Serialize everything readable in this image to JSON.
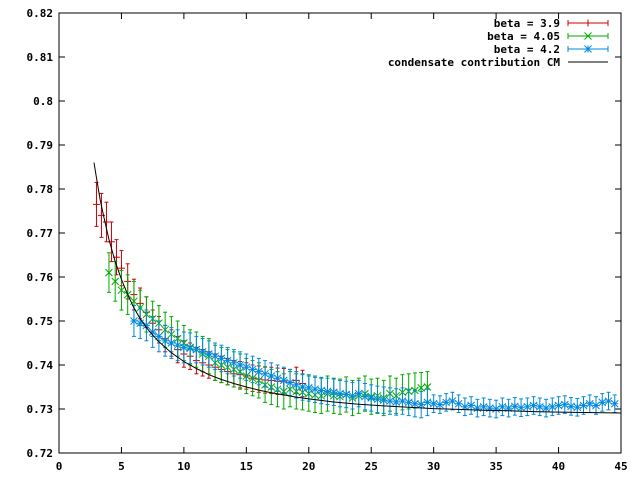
{
  "chart_data": {
    "type": "scatter",
    "title": "",
    "xlabel": "",
    "ylabel": "",
    "xlim": [
      0,
      45
    ],
    "ylim": [
      0.72,
      0.82
    ],
    "x_ticks": [
      0,
      5,
      10,
      15,
      20,
      25,
      30,
      35,
      40,
      45
    ],
    "x_tick_labels": [
      "0",
      "5",
      "10",
      "15",
      "20",
      "25",
      "30",
      "35",
      "40",
      "45"
    ],
    "y_ticks": [
      0.72,
      0.73,
      0.74,
      0.75,
      0.76,
      0.77,
      0.78,
      0.79,
      0.8,
      0.81,
      0.82
    ],
    "y_tick_labels": [
      "0.72",
      "0.73",
      "0.74",
      "0.75",
      "0.76",
      "0.77",
      "0.78",
      "0.79",
      "0.8",
      "0.81",
      "0.82"
    ],
    "grid": false,
    "legend_position": "top-right",
    "series": [
      {
        "name": "beta = 3.9",
        "color": "#cc0000",
        "marker": "plus",
        "x": [
          3.0,
          3.4,
          3.8,
          4.2,
          4.6,
          5.0,
          5.5,
          6.0,
          6.5,
          7.0,
          7.5,
          8.0,
          8.5,
          9.0,
          9.5,
          10.0,
          10.5,
          11.0,
          11.5,
          12.0,
          12.5,
          13.0,
          13.5,
          14.0,
          14.5,
          15.0,
          15.5,
          16.0,
          16.5,
          17.0,
          17.5,
          18.0,
          18.5,
          19.0,
          19.5
        ],
        "y": [
          0.7765,
          0.774,
          0.7725,
          0.768,
          0.7645,
          0.762,
          0.759,
          0.756,
          0.754,
          0.752,
          0.7495,
          0.748,
          0.746,
          0.745,
          0.7435,
          0.7425,
          0.742,
          0.741,
          0.7405,
          0.74,
          0.7395,
          0.739,
          0.7385,
          0.738,
          0.7378,
          0.7375,
          0.737,
          0.7368,
          0.7366,
          0.7365,
          0.7363,
          0.7362,
          0.736,
          0.7365,
          0.7358
        ],
        "err": [
          0.005,
          0.005,
          0.0045,
          0.0045,
          0.004,
          0.004,
          0.004,
          0.0035,
          0.0035,
          0.0035,
          0.003,
          0.003,
          0.003,
          0.003,
          0.003,
          0.003,
          0.003,
          0.003,
          0.003,
          0.003,
          0.003,
          0.003,
          0.003,
          0.003,
          0.003,
          0.003,
          0.003,
          0.003,
          0.003,
          0.003,
          0.003,
          0.003,
          0.003,
          0.003,
          0.003
        ]
      },
      {
        "name": "beta = 4.05",
        "color": "#00aa00",
        "marker": "cross",
        "x": [
          4.0,
          4.5,
          5.0,
          5.5,
          6.0,
          6.5,
          7.0,
          7.5,
          8.0,
          8.5,
          9.0,
          9.5,
          10.0,
          10.5,
          11.0,
          11.5,
          12.0,
          12.5,
          13.0,
          13.5,
          14.0,
          14.5,
          15.0,
          15.5,
          16.0,
          16.5,
          17.0,
          17.5,
          18.0,
          18.5,
          19.0,
          19.5,
          20.0,
          20.5,
          21.0,
          21.5,
          22.0,
          22.5,
          23.0,
          23.5,
          24.0,
          24.5,
          25.0,
          25.5,
          26.0,
          26.5,
          27.0,
          27.5,
          28.0,
          28.5,
          29.0,
          29.5
        ],
        "y": [
          0.761,
          0.759,
          0.757,
          0.756,
          0.7545,
          0.753,
          0.7515,
          0.7505,
          0.7495,
          0.748,
          0.747,
          0.746,
          0.745,
          0.744,
          0.7435,
          0.7425,
          0.742,
          0.7405,
          0.74,
          0.7395,
          0.739,
          0.7385,
          0.7375,
          0.737,
          0.7365,
          0.7355,
          0.735,
          0.7345,
          0.734,
          0.7345,
          0.734,
          0.7338,
          0.7335,
          0.7332,
          0.733,
          0.7335,
          0.733,
          0.7328,
          0.7333,
          0.7325,
          0.733,
          0.7335,
          0.7328,
          0.733,
          0.7325,
          0.7335,
          0.733,
          0.7338,
          0.734,
          0.7342,
          0.7348,
          0.735
        ],
        "err": [
          0.0045,
          0.0045,
          0.0045,
          0.0045,
          0.0045,
          0.004,
          0.004,
          0.004,
          0.004,
          0.004,
          0.004,
          0.004,
          0.004,
          0.004,
          0.004,
          0.004,
          0.004,
          0.004,
          0.004,
          0.004,
          0.004,
          0.004,
          0.004,
          0.004,
          0.004,
          0.004,
          0.004,
          0.004,
          0.004,
          0.004,
          0.004,
          0.004,
          0.004,
          0.004,
          0.004,
          0.004,
          0.004,
          0.004,
          0.004,
          0.004,
          0.004,
          0.004,
          0.004,
          0.004,
          0.004,
          0.004,
          0.004,
          0.004,
          0.004,
          0.004,
          0.0035,
          0.0035
        ]
      },
      {
        "name": "beta = 4.2",
        "color": "#0088dd",
        "marker": "star",
        "x": [
          6.0,
          6.5,
          7.0,
          7.5,
          8.0,
          8.5,
          9.0,
          9.5,
          10.0,
          10.5,
          11.0,
          11.5,
          12.0,
          12.5,
          13.0,
          13.5,
          14.0,
          14.5,
          15.0,
          15.5,
          16.0,
          16.5,
          17.0,
          17.5,
          18.0,
          18.5,
          19.0,
          19.5,
          20.0,
          20.5,
          21.0,
          21.5,
          22.0,
          22.5,
          23.0,
          23.5,
          24.0,
          24.5,
          25.0,
          25.5,
          26.0,
          26.5,
          27.0,
          27.5,
          28.0,
          28.5,
          29.0,
          29.5,
          30.0,
          30.5,
          31.0,
          31.5,
          32.0,
          32.5,
          33.0,
          33.5,
          34.0,
          34.5,
          35.0,
          35.5,
          36.0,
          36.5,
          37.0,
          37.5,
          38.0,
          38.5,
          39.0,
          39.5,
          40.0,
          40.5,
          41.0,
          41.5,
          42.0,
          42.5,
          43.0,
          43.5,
          44.0,
          44.5
        ],
        "y": [
          0.75,
          0.7495,
          0.749,
          0.7475,
          0.7465,
          0.7455,
          0.745,
          0.7445,
          0.744,
          0.7438,
          0.7435,
          0.743,
          0.7425,
          0.742,
          0.7415,
          0.741,
          0.7405,
          0.74,
          0.7395,
          0.739,
          0.7385,
          0.738,
          0.7375,
          0.737,
          0.7365,
          0.736,
          0.7355,
          0.735,
          0.7348,
          0.7345,
          0.7342,
          0.734,
          0.7338,
          0.7335,
          0.7333,
          0.733,
          0.7335,
          0.7328,
          0.7325,
          0.7322,
          0.732,
          0.7318,
          0.7316,
          0.7318,
          0.7315,
          0.7312,
          0.731,
          0.7315,
          0.7312,
          0.731,
          0.7315,
          0.7318,
          0.7312,
          0.7305,
          0.7308,
          0.7302,
          0.7305,
          0.7302,
          0.73,
          0.7305,
          0.7302,
          0.7306,
          0.7303,
          0.7305,
          0.7308,
          0.7305,
          0.7302,
          0.7305,
          0.7308,
          0.731,
          0.7306,
          0.7304,
          0.7308,
          0.7312,
          0.7308,
          0.7315,
          0.7318,
          0.7312
        ],
        "err": [
          0.0035,
          0.0035,
          0.0035,
          0.0035,
          0.0035,
          0.0035,
          0.0035,
          0.0035,
          0.0035,
          0.0035,
          0.003,
          0.003,
          0.003,
          0.003,
          0.003,
          0.003,
          0.003,
          0.003,
          0.003,
          0.003,
          0.003,
          0.003,
          0.003,
          0.003,
          0.003,
          0.003,
          0.003,
          0.003,
          0.003,
          0.003,
          0.003,
          0.003,
          0.003,
          0.003,
          0.003,
          0.003,
          0.003,
          0.003,
          0.003,
          0.003,
          0.003,
          0.003,
          0.003,
          0.003,
          0.003,
          0.003,
          0.003,
          0.003,
          0.002,
          0.002,
          0.002,
          0.002,
          0.002,
          0.002,
          0.002,
          0.002,
          0.002,
          0.002,
          0.002,
          0.002,
          0.002,
          0.002,
          0.002,
          0.002,
          0.002,
          0.002,
          0.002,
          0.002,
          0.002,
          0.002,
          0.002,
          0.002,
          0.002,
          0.002,
          0.002,
          0.002,
          0.002,
          0.002
        ]
      },
      {
        "name": "condensate contribution CM",
        "color": "#000000",
        "marker": "line",
        "x": [
          2.8,
          3.0,
          3.3,
          3.6,
          4.0,
          4.5,
          5.0,
          5.5,
          6.0,
          6.5,
          7.0,
          7.5,
          8.0,
          8.5,
          9.0,
          9.5,
          10.0,
          11.0,
          12.0,
          13.0,
          14.0,
          15.0,
          16.0,
          17.0,
          18.0,
          19.0,
          20.0,
          22.0,
          24.0,
          26.0,
          28.0,
          30.0,
          32.0,
          34.0,
          36.0,
          38.0,
          40.0,
          42.0,
          45.0
        ],
        "y": [
          0.786,
          0.7825,
          0.7775,
          0.7735,
          0.7685,
          0.7635,
          0.7595,
          0.756,
          0.753,
          0.7505,
          0.7485,
          0.7468,
          0.7453,
          0.744,
          0.7428,
          0.7418,
          0.7408,
          0.7392,
          0.7378,
          0.7367,
          0.7358,
          0.735,
          0.7343,
          0.7337,
          0.7332,
          0.7327,
          0.7323,
          0.7316,
          0.7311,
          0.7307,
          0.7304,
          0.7301,
          0.7299,
          0.7297,
          0.7296,
          0.7294,
          0.7293,
          0.7292,
          0.7291
        ]
      }
    ]
  }
}
